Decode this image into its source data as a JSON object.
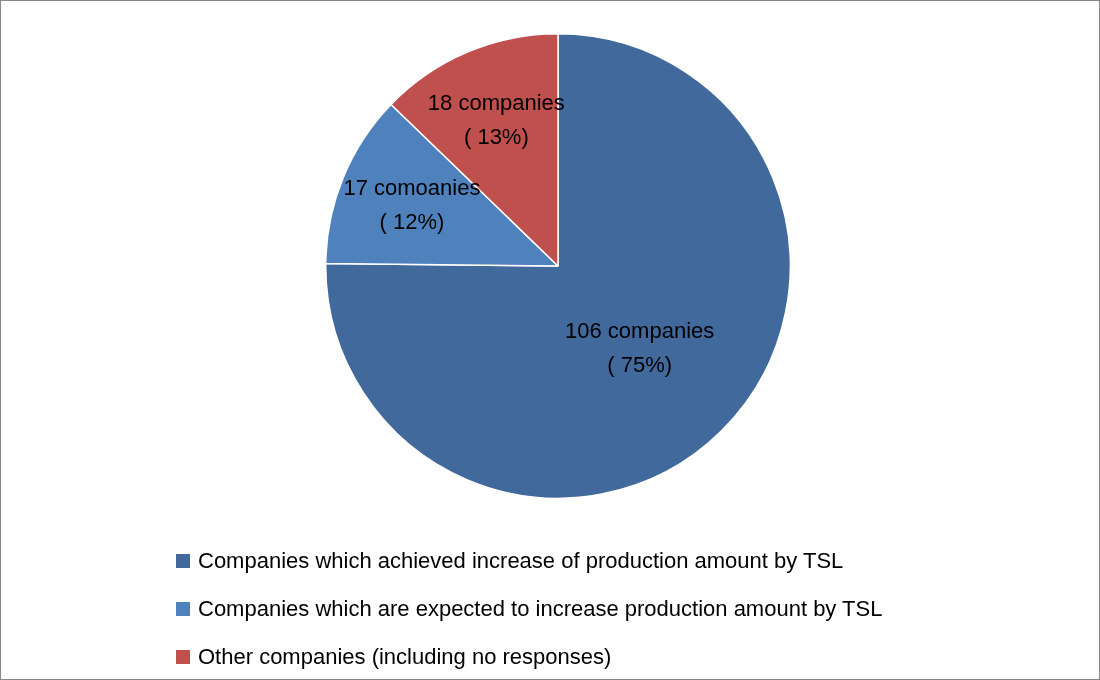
{
  "chart_data": {
    "type": "pie",
    "categories": [
      "Companies which achieved increase of production amount by TSL",
      "Companies which are expected to increase production amount by TSL",
      "Other companies (including no responses)"
    ],
    "values": [
      106,
      17,
      18
    ],
    "colors": [
      "#41699c",
      "#4f81bd",
      "#c0504d"
    ],
    "value_labels": [
      "106 companies\n( 75%)",
      "17 comoanies\n( 12%)",
      "18 companies\n( 13%)"
    ],
    "legend": "bottom"
  }
}
